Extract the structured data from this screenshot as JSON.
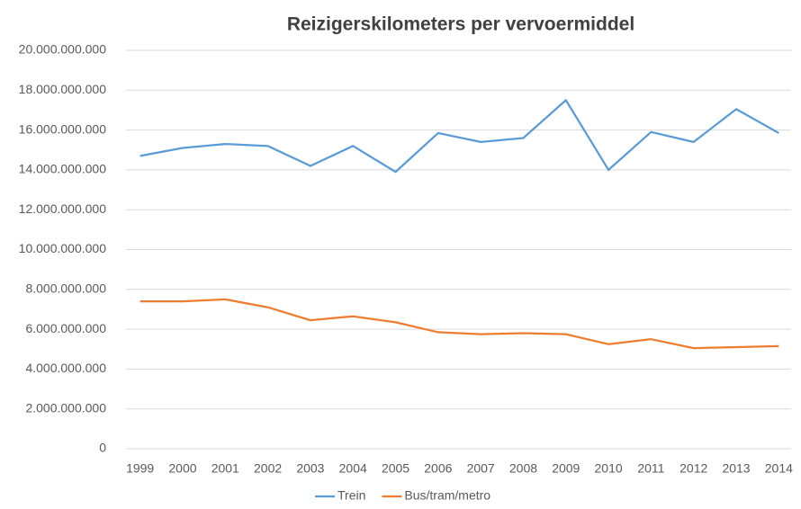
{
  "chart_data": {
    "type": "line",
    "title": "Reizigerskilometers per vervoermiddel",
    "categories": [
      "1999",
      "2000",
      "2001",
      "2002",
      "2003",
      "2004",
      "2005",
      "2006",
      "2007",
      "2008",
      "2009",
      "2010",
      "2011",
      "2012",
      "2013",
      "2014"
    ],
    "series": [
      {
        "name": "Trein",
        "color": "#5b9bd5",
        "values": [
          14700000000,
          15100000000,
          15300000000,
          15200000000,
          14200000000,
          15200000000,
          13900000000,
          15850000000,
          15400000000,
          15600000000,
          17500000000,
          14000000000,
          15900000000,
          15400000000,
          17050000000,
          15850000000
        ]
      },
      {
        "name": "Bus/tram/metro",
        "color": "#ed7d31",
        "values": [
          7400000000,
          7400000000,
          7500000000,
          7100000000,
          6450000000,
          6650000000,
          6350000000,
          5850000000,
          5750000000,
          5800000000,
          5750000000,
          5250000000,
          5500000000,
          5050000000,
          5100000000,
          5150000000
        ]
      }
    ],
    "ylim": [
      0,
      20000000000
    ],
    "yticks": [
      0,
      {
        "value": 2000000000,
        "label": "2.000.000.000"
      },
      {
        "value": 4000000000,
        "label": "4.000.000.000"
      },
      {
        "value": 6000000000,
        "label": "6.000.000.000"
      },
      {
        "value": 8000000000,
        "label": "8.000.000.000"
      },
      {
        "value": 10000000000,
        "label": "10.000.000.000"
      },
      {
        "value": 12000000000,
        "label": "12.000.000.000"
      },
      {
        "value": 14000000000,
        "label": "14.000.000.000"
      },
      {
        "value": 16000000000,
        "label": "16.000.000.000"
      },
      {
        "value": 18000000000,
        "label": "18.000.000.000"
      },
      {
        "value": 20000000000,
        "label": "20.000.000.000"
      }
    ],
    "grid": true,
    "legend": "bottom"
  }
}
